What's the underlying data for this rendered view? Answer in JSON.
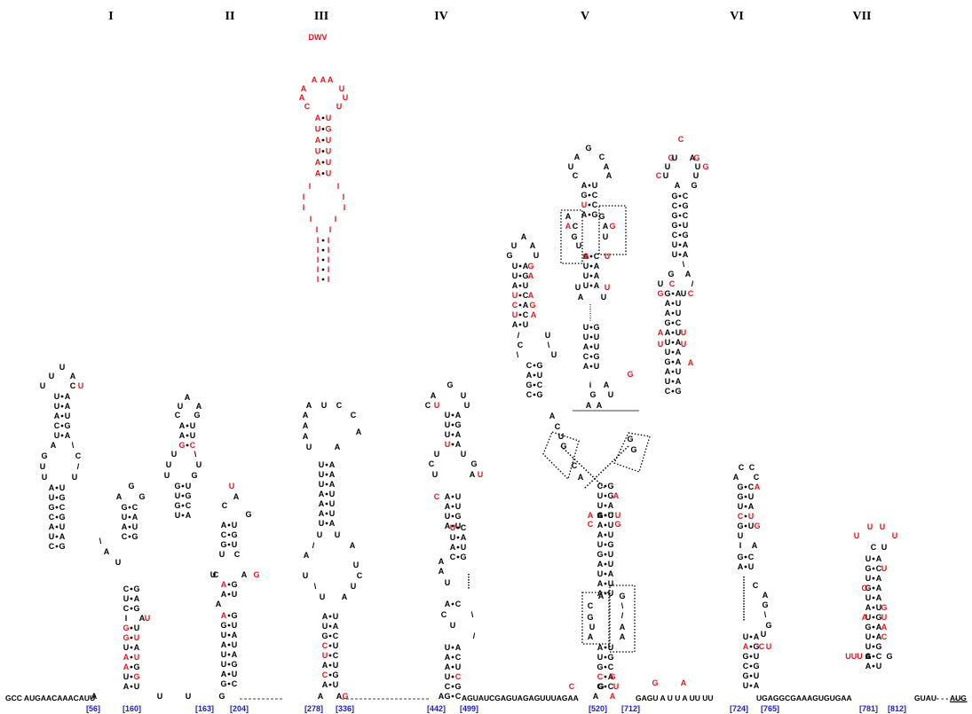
{
  "domain_labels": [
    "I",
    "II",
    "III",
    "IV",
    "V",
    "VI",
    "VII"
  ],
  "dwv_label": "DWV",
  "sequence": {
    "prefix": "GCC AUGAACAAACAUU",
    "mid_iv_v": "AGUAUCGAGUAGAGUUUAGAA",
    "mid_v_vi": "GAGU  A U  U  A UU UU",
    "mid_vi_vii": "UGAGGCGAAAGUGUGAA",
    "vii_tail": "GUAU- - - - - -",
    "suffix": "AUG"
  },
  "positions": [
    "[56]",
    "[160]",
    "[163]",
    "[204]",
    "[278]",
    "[336]",
    "[442]",
    "[499]",
    "[520]",
    "[712]",
    "[724]",
    "[765]",
    "[781]",
    "[812]"
  ],
  "colors": {
    "conserved": "#e8141b",
    "position": "#1d1dcf",
    "base": "#000000"
  }
}
